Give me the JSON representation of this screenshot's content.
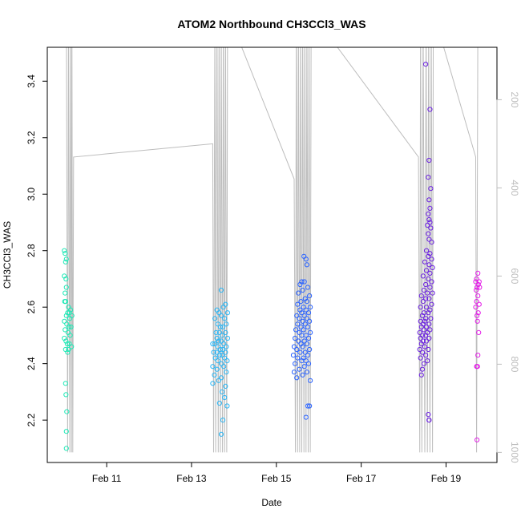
{
  "chart_data": {
    "type": "scatter",
    "title": "ATOM2 Northbound CH3CCl3_WAS",
    "xlabel": "Date",
    "ylabel": "CH3CCl3_WAS",
    "x_unit": "days",
    "x_ticks": [
      {
        "label": "Feb 11",
        "x": 11
      },
      {
        "label": "Feb 13",
        "x": 13
      },
      {
        "label": "Feb 15",
        "x": 15
      },
      {
        "label": "Feb 17",
        "x": 17
      },
      {
        "label": "Feb 19",
        "x": 19
      }
    ],
    "y_ticks": [
      2.2,
      2.4,
      2.6,
      2.8,
      3.0,
      3.2,
      3.4
    ],
    "right_ticks": [
      200,
      400,
      600,
      800,
      1000
    ],
    "xlim": [
      9.6,
      20.2
    ],
    "ylim": [
      2.05,
      3.52
    ],
    "right_lim": [
      81,
      1023
    ],
    "grid": false,
    "legend": "none",
    "colors": {
      "track": "#bdbdbd",
      "cluster1": "#1de9b6",
      "cluster2": "#29b6f6",
      "cluster3": "#2962ff",
      "cluster4": "#6a1fe0",
      "cluster5": "#e41ae8"
    },
    "altitude_track": [
      [
        10.05,
        0
      ],
      [
        10.08,
        1000
      ],
      [
        10.1,
        0
      ],
      [
        10.13,
        1000
      ],
      [
        10.15,
        0
      ],
      [
        10.17,
        1000
      ],
      [
        10.18,
        0
      ],
      [
        10.2,
        1000
      ],
      [
        10.22,
        330
      ],
      [
        13.5,
        300
      ],
      [
        13.52,
        1000
      ],
      [
        13.55,
        0
      ],
      [
        13.57,
        1000
      ],
      [
        13.6,
        0
      ],
      [
        13.63,
        1000
      ],
      [
        13.65,
        0
      ],
      [
        13.68,
        1000
      ],
      [
        13.7,
        0
      ],
      [
        13.73,
        1000
      ],
      [
        13.75,
        0
      ],
      [
        13.78,
        1000
      ],
      [
        13.8,
        0
      ],
      [
        13.83,
        1000
      ],
      [
        13.85,
        0
      ],
      [
        15.42,
        380
      ],
      [
        15.45,
        1000
      ],
      [
        15.47,
        0
      ],
      [
        15.5,
        1000
      ],
      [
        15.52,
        0
      ],
      [
        15.55,
        1000
      ],
      [
        15.57,
        0
      ],
      [
        15.6,
        1000
      ],
      [
        15.62,
        0
      ],
      [
        15.65,
        1000
      ],
      [
        15.67,
        0
      ],
      [
        15.7,
        1000
      ],
      [
        15.72,
        0
      ],
      [
        15.75,
        1000
      ],
      [
        15.77,
        0
      ],
      [
        15.8,
        1000
      ],
      [
        15.82,
        0
      ],
      [
        18.35,
        330
      ],
      [
        18.38,
        1000
      ],
      [
        18.4,
        0
      ],
      [
        18.43,
        1000
      ],
      [
        18.46,
        0
      ],
      [
        18.5,
        1000
      ],
      [
        18.53,
        0
      ],
      [
        18.56,
        1000
      ],
      [
        18.59,
        0
      ],
      [
        18.62,
        1000
      ],
      [
        18.65,
        0
      ],
      [
        18.68,
        1000
      ],
      [
        18.7,
        0
      ],
      [
        19.7,
        330
      ],
      [
        19.72,
        1000
      ],
      [
        19.75,
        0
      ]
    ],
    "series": [
      {
        "color": "#1de9b6",
        "points": [
          [
            10.0,
            2.8
          ],
          [
            10.02,
            2.79
          ],
          [
            10.05,
            2.77
          ],
          [
            10.03,
            2.76
          ],
          [
            10.0,
            2.71
          ],
          [
            10.04,
            2.7
          ],
          [
            10.05,
            2.67
          ],
          [
            10.02,
            2.65
          ],
          [
            10.01,
            2.62
          ],
          [
            10.03,
            2.62
          ],
          [
            10.1,
            2.6
          ],
          [
            10.15,
            2.59
          ],
          [
            10.12,
            2.58
          ],
          [
            10.08,
            2.58
          ],
          [
            10.05,
            2.57
          ],
          [
            10.18,
            2.57
          ],
          [
            10.13,
            2.56
          ],
          [
            10.0,
            2.55
          ],
          [
            10.06,
            2.54
          ],
          [
            10.11,
            2.53
          ],
          [
            10.16,
            2.53
          ],
          [
            10.02,
            2.52
          ],
          [
            10.09,
            2.51
          ],
          [
            10.14,
            2.5
          ],
          [
            10.0,
            2.49
          ],
          [
            10.04,
            2.48
          ],
          [
            10.07,
            2.47
          ],
          [
            10.12,
            2.47
          ],
          [
            10.17,
            2.46
          ],
          [
            10.03,
            2.45
          ],
          [
            10.1,
            2.45
          ],
          [
            10.08,
            2.44
          ],
          [
            10.03,
            2.33
          ],
          [
            10.04,
            2.29
          ],
          [
            10.06,
            2.23
          ],
          [
            10.05,
            2.16
          ],
          [
            10.05,
            2.1
          ]
        ]
      },
      {
        "color": "#29b6f6",
        "points": [
          [
            13.7,
            2.66
          ],
          [
            13.8,
            2.61
          ],
          [
            13.75,
            2.6
          ],
          [
            13.6,
            2.59
          ],
          [
            13.65,
            2.58
          ],
          [
            13.85,
            2.58
          ],
          [
            13.7,
            2.57
          ],
          [
            13.55,
            2.56
          ],
          [
            13.78,
            2.56
          ],
          [
            13.62,
            2.54
          ],
          [
            13.82,
            2.54
          ],
          [
            13.68,
            2.53
          ],
          [
            13.74,
            2.53
          ],
          [
            13.58,
            2.51
          ],
          [
            13.66,
            2.51
          ],
          [
            13.8,
            2.51
          ],
          [
            13.72,
            2.5
          ],
          [
            13.6,
            2.49
          ],
          [
            13.85,
            2.49
          ],
          [
            13.64,
            2.48
          ],
          [
            13.7,
            2.48
          ],
          [
            13.5,
            2.47
          ],
          [
            13.55,
            2.47
          ],
          [
            13.76,
            2.47
          ],
          [
            13.82,
            2.46
          ],
          [
            13.62,
            2.46
          ],
          [
            13.68,
            2.45
          ],
          [
            13.74,
            2.45
          ],
          [
            13.52,
            2.44
          ],
          [
            13.6,
            2.44
          ],
          [
            13.8,
            2.44
          ],
          [
            13.66,
            2.43
          ],
          [
            13.72,
            2.43
          ],
          [
            13.78,
            2.42
          ],
          [
            13.56,
            2.42
          ],
          [
            13.62,
            2.41
          ],
          [
            13.84,
            2.41
          ],
          [
            13.7,
            2.4
          ],
          [
            13.5,
            2.39
          ],
          [
            13.76,
            2.39
          ],
          [
            13.6,
            2.38
          ],
          [
            13.82,
            2.37
          ],
          [
            13.54,
            2.36
          ],
          [
            13.7,
            2.35
          ],
          [
            13.64,
            2.34
          ],
          [
            13.5,
            2.33
          ],
          [
            13.8,
            2.32
          ],
          [
            13.72,
            2.3
          ],
          [
            13.78,
            2.28
          ],
          [
            13.66,
            2.26
          ],
          [
            13.84,
            2.25
          ],
          [
            13.74,
            2.2
          ],
          [
            13.7,
            2.15
          ]
        ]
      },
      {
        "color": "#2962ff",
        "points": [
          [
            15.65,
            2.78
          ],
          [
            15.7,
            2.77
          ],
          [
            15.72,
            2.75
          ],
          [
            15.6,
            2.69
          ],
          [
            15.66,
            2.69
          ],
          [
            15.56,
            2.68
          ],
          [
            15.74,
            2.67
          ],
          [
            15.62,
            2.66
          ],
          [
            15.52,
            2.65
          ],
          [
            15.78,
            2.64
          ],
          [
            15.68,
            2.63
          ],
          [
            15.58,
            2.62
          ],
          [
            15.72,
            2.62
          ],
          [
            15.5,
            2.61
          ],
          [
            15.64,
            2.6
          ],
          [
            15.8,
            2.6
          ],
          [
            15.56,
            2.59
          ],
          [
            15.7,
            2.59
          ],
          [
            15.6,
            2.58
          ],
          [
            15.76,
            2.58
          ],
          [
            15.48,
            2.57
          ],
          [
            15.66,
            2.57
          ],
          [
            15.54,
            2.56
          ],
          [
            15.72,
            2.56
          ],
          [
            15.62,
            2.55
          ],
          [
            15.78,
            2.55
          ],
          [
            15.5,
            2.54
          ],
          [
            15.68,
            2.54
          ],
          [
            15.58,
            2.53
          ],
          [
            15.74,
            2.53
          ],
          [
            15.46,
            2.52
          ],
          [
            15.64,
            2.52
          ],
          [
            15.8,
            2.51
          ],
          [
            15.54,
            2.51
          ],
          [
            15.7,
            2.5
          ],
          [
            15.6,
            2.5
          ],
          [
            15.44,
            2.49
          ],
          [
            15.76,
            2.49
          ],
          [
            15.66,
            2.48
          ],
          [
            15.52,
            2.48
          ],
          [
            15.72,
            2.47
          ],
          [
            15.58,
            2.47
          ],
          [
            15.42,
            2.46
          ],
          [
            15.62,
            2.46
          ],
          [
            15.78,
            2.45
          ],
          [
            15.48,
            2.45
          ],
          [
            15.68,
            2.44
          ],
          [
            15.56,
            2.44
          ],
          [
            15.74,
            2.43
          ],
          [
            15.4,
            2.43
          ],
          [
            15.64,
            2.42
          ],
          [
            15.5,
            2.42
          ],
          [
            15.7,
            2.41
          ],
          [
            15.6,
            2.41
          ],
          [
            15.44,
            2.4
          ],
          [
            15.76,
            2.4
          ],
          [
            15.66,
            2.39
          ],
          [
            15.54,
            2.38
          ],
          [
            15.42,
            2.37
          ],
          [
            15.72,
            2.37
          ],
          [
            15.62,
            2.36
          ],
          [
            15.48,
            2.35
          ],
          [
            15.8,
            2.34
          ],
          [
            15.74,
            2.25
          ],
          [
            15.78,
            2.25
          ],
          [
            15.7,
            2.21
          ]
        ]
      },
      {
        "color": "#6a1fe0",
        "points": [
          [
            18.52,
            3.46
          ],
          [
            18.62,
            3.3
          ],
          [
            18.6,
            3.12
          ],
          [
            18.58,
            3.06
          ],
          [
            18.64,
            3.02
          ],
          [
            18.6,
            2.98
          ],
          [
            18.62,
            2.95
          ],
          [
            18.58,
            2.93
          ],
          [
            18.6,
            2.91
          ],
          [
            18.62,
            2.9
          ],
          [
            18.56,
            2.89
          ],
          [
            18.64,
            2.88
          ],
          [
            18.58,
            2.86
          ],
          [
            18.6,
            2.84
          ],
          [
            18.66,
            2.83
          ],
          [
            18.54,
            2.8
          ],
          [
            18.62,
            2.79
          ],
          [
            18.58,
            2.78
          ],
          [
            18.66,
            2.77
          ],
          [
            18.5,
            2.76
          ],
          [
            18.6,
            2.75
          ],
          [
            18.68,
            2.74
          ],
          [
            18.54,
            2.73
          ],
          [
            18.62,
            2.72
          ],
          [
            18.46,
            2.71
          ],
          [
            18.58,
            2.7
          ],
          [
            18.66,
            2.69
          ],
          [
            18.52,
            2.68
          ],
          [
            18.62,
            2.67
          ],
          [
            18.48,
            2.66
          ],
          [
            18.56,
            2.65
          ],
          [
            18.68,
            2.65
          ],
          [
            18.42,
            2.64
          ],
          [
            18.52,
            2.63
          ],
          [
            18.6,
            2.63
          ],
          [
            18.46,
            2.62
          ],
          [
            18.66,
            2.61
          ],
          [
            18.54,
            2.6
          ],
          [
            18.4,
            2.6
          ],
          [
            18.62,
            2.59
          ],
          [
            18.48,
            2.58
          ],
          [
            18.58,
            2.58
          ],
          [
            18.44,
            2.57
          ],
          [
            18.52,
            2.56
          ],
          [
            18.64,
            2.56
          ],
          [
            18.4,
            2.55
          ],
          [
            18.5,
            2.55
          ],
          [
            18.6,
            2.54
          ],
          [
            18.46,
            2.54
          ],
          [
            18.54,
            2.53
          ],
          [
            18.42,
            2.53
          ],
          [
            18.62,
            2.52
          ],
          [
            18.48,
            2.52
          ],
          [
            18.38,
            2.51
          ],
          [
            18.56,
            2.51
          ],
          [
            18.44,
            2.5
          ],
          [
            18.52,
            2.5
          ],
          [
            18.4,
            2.49
          ],
          [
            18.6,
            2.49
          ],
          [
            18.46,
            2.48
          ],
          [
            18.54,
            2.48
          ],
          [
            18.42,
            2.47
          ],
          [
            18.5,
            2.46
          ],
          [
            18.38,
            2.45
          ],
          [
            18.58,
            2.45
          ],
          [
            18.44,
            2.44
          ],
          [
            18.52,
            2.43
          ],
          [
            18.4,
            2.42
          ],
          [
            18.56,
            2.41
          ],
          [
            18.48,
            2.4
          ],
          [
            18.44,
            2.38
          ],
          [
            18.42,
            2.36
          ],
          [
            18.58,
            2.22
          ],
          [
            18.6,
            2.2
          ],
          [
            18.6,
            2.2
          ]
        ]
      },
      {
        "color": "#e41ae8",
        "points": [
          [
            19.75,
            2.72
          ],
          [
            19.72,
            2.7
          ],
          [
            19.78,
            2.69
          ],
          [
            19.7,
            2.69
          ],
          [
            19.76,
            2.68
          ],
          [
            19.73,
            2.67
          ],
          [
            19.79,
            2.67
          ],
          [
            19.71,
            2.66
          ],
          [
            19.75,
            2.64
          ],
          [
            19.72,
            2.62
          ],
          [
            19.78,
            2.61
          ],
          [
            19.7,
            2.6
          ],
          [
            19.76,
            2.58
          ],
          [
            19.73,
            2.57
          ],
          [
            19.74,
            2.55
          ],
          [
            19.77,
            2.51
          ],
          [
            19.75,
            2.43
          ],
          [
            19.72,
            2.39
          ],
          [
            19.74,
            2.39
          ],
          [
            19.73,
            2.13
          ]
        ]
      }
    ]
  }
}
